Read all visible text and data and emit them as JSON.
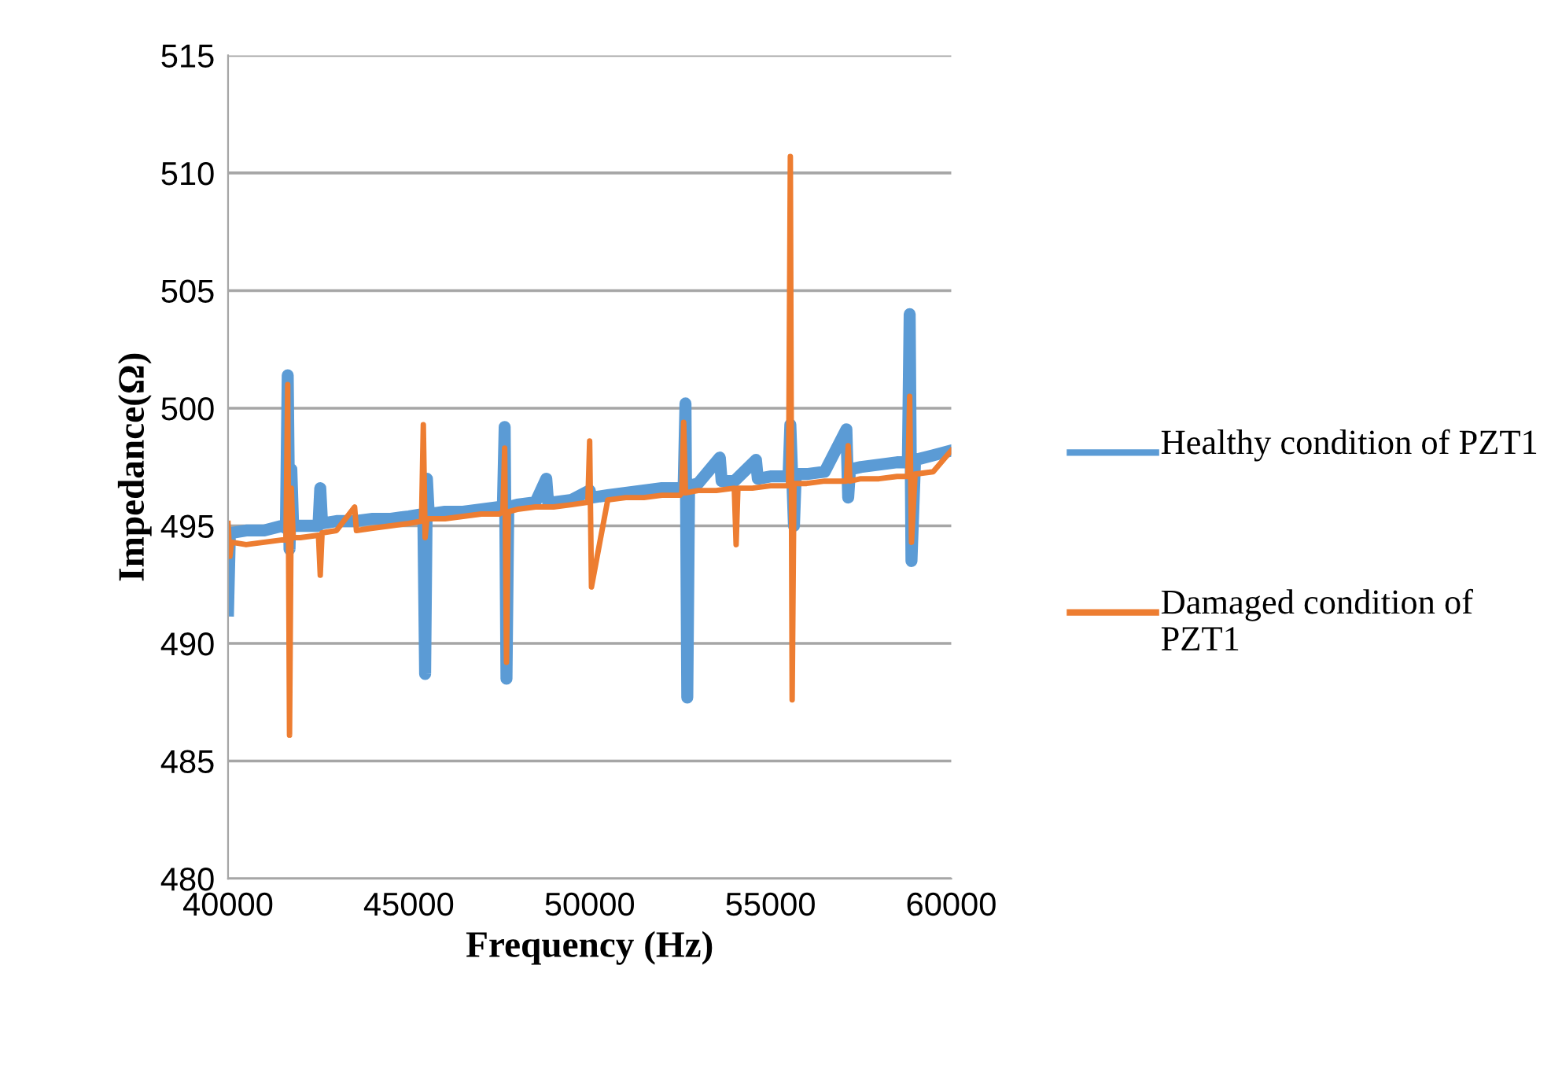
{
  "chart_data": {
    "type": "line",
    "xlabel": "Frequency (Hz)",
    "ylabel": "Impedance(Ω)",
    "xlim": [
      40000,
      60000
    ],
    "xticks": [
      40000,
      45000,
      50000,
      55000,
      60000
    ],
    "ylim": [
      480,
      515
    ],
    "yticks": [
      480,
      485,
      490,
      495,
      500,
      505,
      510,
      515
    ],
    "grid": "y",
    "legend": "right",
    "marker": "none",
    "line_style": "solid",
    "series": [
      {
        "name": "Healthy condition of PZT1",
        "color": "#5b9bd5",
        "x": [
          40000,
          40050,
          40100,
          40500,
          41000,
          41500,
          41600,
          41650,
          41700,
          41750,
          41800,
          42000,
          42500,
          42550,
          42600,
          43000,
          43500,
          44000,
          44500,
          45000,
          45400,
          45450,
          45500,
          45550,
          46000,
          46500,
          47000,
          47500,
          47600,
          47650,
          47700,
          47750,
          48000,
          48500,
          48800,
          48850,
          49000,
          49500,
          50000,
          50050,
          50500,
          51000,
          51500,
          52000,
          52500,
          52600,
          52650,
          52700,
          52750,
          53000,
          53600,
          53650,
          54000,
          54600,
          54650,
          55000,
          55500,
          55550,
          55650,
          55700,
          56000,
          56500,
          57100,
          57150,
          57200,
          57500,
          58000,
          58500,
          58800,
          58850,
          58900,
          59000,
          59500,
          60000
        ],
        "values": [
          491.4,
          494.6,
          494.7,
          494.8,
          494.8,
          495.0,
          494.9,
          501.4,
          494.0,
          497.4,
          495.0,
          495.0,
          495.0,
          496.6,
          495.1,
          495.2,
          495.2,
          495.3,
          495.3,
          495.4,
          495.5,
          488.7,
          497.0,
          495.5,
          495.6,
          495.6,
          495.7,
          495.8,
          495.8,
          499.2,
          488.5,
          495.8,
          495.9,
          496.0,
          497.0,
          496.0,
          496.0,
          496.1,
          496.5,
          496.2,
          496.3,
          496.4,
          496.5,
          496.6,
          496.6,
          496.7,
          500.2,
          487.7,
          496.7,
          496.8,
          497.9,
          496.9,
          496.9,
          497.8,
          497.0,
          497.1,
          497.1,
          499.3,
          495.0,
          497.2,
          497.2,
          497.3,
          499.1,
          496.2,
          497.4,
          497.5,
          497.6,
          497.7,
          497.7,
          504.0,
          493.5,
          497.8,
          498.0,
          498.2
        ]
      },
      {
        "name": "Damaged condition of PZT1",
        "color": "#ed7d31",
        "x": [
          40000,
          40050,
          40100,
          40500,
          41000,
          41500,
          41600,
          41650,
          41700,
          41750,
          41800,
          42000,
          42500,
          42550,
          42600,
          43000,
          43500,
          43550,
          44000,
          44500,
          45000,
          45350,
          45400,
          45450,
          45500,
          46000,
          46500,
          47000,
          47500,
          47600,
          47650,
          47700,
          47750,
          48000,
          48500,
          49000,
          49500,
          49950,
          50000,
          50050,
          50500,
          51000,
          51500,
          52000,
          52500,
          52550,
          52600,
          52650,
          53000,
          53500,
          54000,
          54050,
          54100,
          54500,
          55000,
          55500,
          55550,
          55600,
          55650,
          56000,
          56500,
          57100,
          57150,
          57200,
          57500,
          58000,
          58500,
          58800,
          58850,
          58900,
          59000,
          59500,
          60000
        ],
        "values": [
          495.1,
          493.7,
          494.3,
          494.2,
          494.3,
          494.4,
          494.4,
          501.0,
          486.1,
          496.6,
          494.5,
          494.5,
          494.6,
          492.9,
          494.7,
          494.8,
          495.8,
          494.8,
          494.9,
          495.0,
          495.1,
          495.2,
          499.3,
          494.5,
          495.3,
          495.3,
          495.4,
          495.5,
          495.5,
          495.6,
          498.3,
          489.2,
          495.6,
          495.7,
          495.8,
          495.8,
          495.9,
          496.0,
          498.6,
          492.4,
          496.1,
          496.2,
          496.2,
          496.3,
          496.3,
          496.4,
          499.4,
          496.4,
          496.5,
          496.5,
          496.6,
          494.2,
          496.6,
          496.6,
          496.7,
          496.7,
          510.7,
          487.6,
          496.8,
          496.8,
          496.9,
          496.9,
          498.4,
          496.9,
          497.0,
          497.0,
          497.1,
          497.1,
          500.5,
          494.3,
          497.2,
          497.3,
          498.2
        ]
      }
    ]
  }
}
